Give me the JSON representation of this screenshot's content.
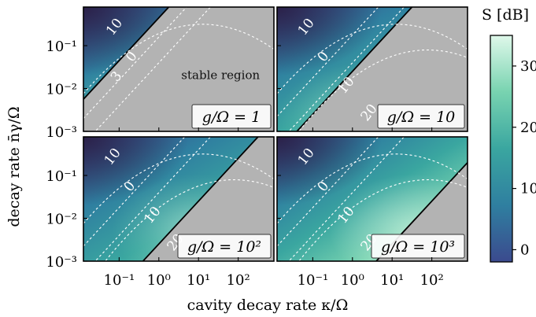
{
  "chart_data": {
    "type": "heatmap",
    "colorbar": {
      "label": "S [dB]",
      "ticks": [
        0,
        10,
        20,
        30
      ],
      "range": [
        -2,
        35
      ],
      "colors": [
        "#3b4a8e",
        "#2f7fa0",
        "#3aa6a0",
        "#78d3b0",
        "#dff8ea"
      ]
    },
    "xlabel": "cavity decay rate κ/Ω",
    "ylabel": "decay rate n̄γ/Ω",
    "x_ticks": [
      "10⁻¹",
      "10⁰",
      "10¹",
      "10²"
    ],
    "y_ticks": [
      "10⁻¹",
      "10⁻²",
      "10⁻³"
    ],
    "xlim_log10": [
      -1.9,
      2.9
    ],
    "ylim_log10": [
      -3,
      -0.1
    ],
    "stable_region_color": "#b3b3b3",
    "panels": [
      {
        "label": "g/Ω = 1",
        "g_log10": 0,
        "contour_labels": [
          "10",
          "0",
          "3"
        ],
        "stable_region_label": "stable region"
      },
      {
        "label": "g/Ω = 10",
        "g_log10": 1,
        "contour_labels": [
          "10",
          "0",
          "10",
          "20"
        ]
      },
      {
        "label": "g/Ω = 10²",
        "g_log10": 2,
        "contour_labels": [
          "10",
          "0",
          "10",
          "20"
        ]
      },
      {
        "label": "g/Ω = 10³",
        "g_log10": 3,
        "contour_labels": [
          "10",
          "0",
          "10",
          "20"
        ]
      }
    ]
  }
}
